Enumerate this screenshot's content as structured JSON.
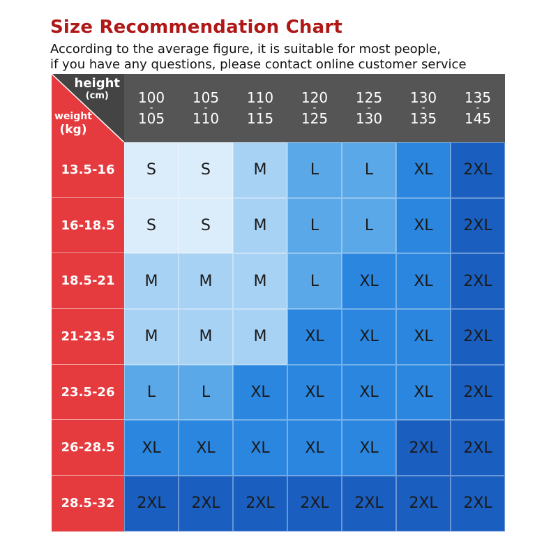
{
  "header": {
    "title": "Size Recommendation Chart",
    "subtitle_line1": "According to the average figure, it is suitable for most people,",
    "subtitle_line2": "if you have any questions, please contact online customer service"
  },
  "corner": {
    "height_label": "height",
    "height_unit": "(cm)",
    "weight_label": "weight",
    "weight_unit": "(kg)"
  },
  "height_columns": [
    {
      "from": "100",
      "to": "105"
    },
    {
      "from": "105",
      "to": "110"
    },
    {
      "from": "110",
      "to": "115"
    },
    {
      "from": "120",
      "to": "125"
    },
    {
      "from": "125",
      "to": "130"
    },
    {
      "from": "130",
      "to": "135"
    },
    {
      "from": "135",
      "to": "145"
    }
  ],
  "weight_rows": [
    "13.5-16",
    "16-18.5",
    "18.5-21",
    "21-23.5",
    "23.5-26",
    "26-28.5",
    "28.5-32"
  ],
  "sizes": [
    [
      "S",
      "S",
      "M",
      "L",
      "L",
      "XL",
      "2XL"
    ],
    [
      "S",
      "S",
      "M",
      "L",
      "L",
      "XL",
      "2XL"
    ],
    [
      "M",
      "M",
      "M",
      "L",
      "XL",
      "XL",
      "2XL"
    ],
    [
      "M",
      "M",
      "M",
      "XL",
      "XL",
      "XL",
      "2XL"
    ],
    [
      "L",
      "L",
      "XL",
      "XL",
      "XL",
      "XL",
      "2XL"
    ],
    [
      "XL",
      "XL",
      "XL",
      "XL",
      "XL",
      "2XL",
      "2XL"
    ],
    [
      "2XL",
      "2XL",
      "2XL",
      "2XL",
      "2XL",
      "2XL",
      "2XL"
    ]
  ],
  "colors": {
    "title": "#b01818",
    "row_header": "#e53a3e",
    "col_header": "#555555",
    "S": "#dbecfa",
    "M": "#a8d2f4",
    "L": "#5aa8e8",
    "XL": "#2b86df",
    "2XL": "#1a5fc0"
  }
}
